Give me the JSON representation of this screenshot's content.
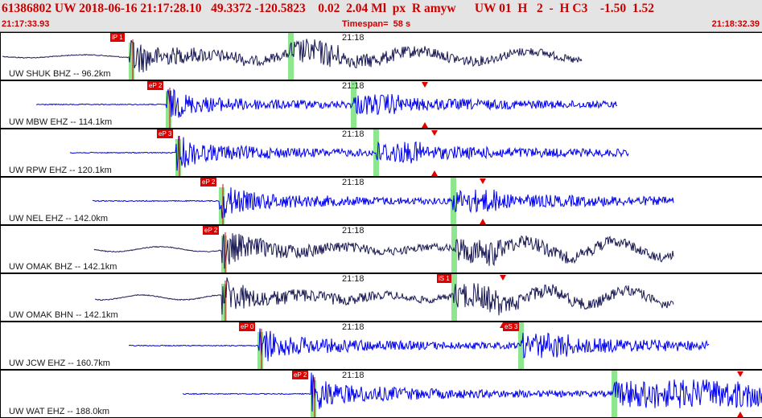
{
  "header": {
    "line": "61386802 UW 2018-06-16 21:17:28.10   49.3372 -120.5823    0.02  2.04 Ml  px  R amyw      UW 01  H   2  -  H C3    -1.50  1.52",
    "start_time": "21:17:33.93",
    "timespan_label": "Timespan=  58 s",
    "end_time": "21:18:32.39"
  },
  "panels": [
    {
      "label": "UW SHUK BHZ -- 96.2km",
      "time_mark": "21:18",
      "color": "#1a1a55",
      "picks": [
        {
          "label": "iP 1"
        }
      ]
    },
    {
      "label": "UW MBW EHZ -- 114.1km",
      "time_mark": "21:18",
      "color": "#0000ee",
      "picks": [
        {
          "label": "eP 2"
        }
      ]
    },
    {
      "label": "UW RPW EHZ -- 120.1km",
      "time_mark": "21:18",
      "color": "#0000ee",
      "picks": [
        {
          "label": "eP 3"
        }
      ]
    },
    {
      "label": "UW NEL EHZ -- 142.0km",
      "time_mark": "21:18",
      "color": "#0000ee",
      "picks": [
        {
          "label": "eP 2"
        }
      ]
    },
    {
      "label": "UW OMAK BHZ -- 142.1km",
      "time_mark": "21:18",
      "color": "#1a1a55",
      "picks": [
        {
          "label": "eP 2"
        }
      ]
    },
    {
      "label": "UW OMAK BHN -- 142.1km",
      "time_mark": "21:18",
      "color": "#1a1a55",
      "picks": [
        {
          "label": "iS 1"
        }
      ]
    },
    {
      "label": "UW JCW EHZ -- 160.7km",
      "time_mark": "21:18",
      "color": "#0000ee",
      "picks": [
        {
          "label": "eP 0"
        },
        {
          "label": "eS 3"
        }
      ]
    },
    {
      "label": "UW WAT EHZ -- 188.0km",
      "time_mark": "21:18",
      "color": "#0000ee",
      "picks": [
        {
          "label": "eP 2"
        }
      ]
    }
  ]
}
